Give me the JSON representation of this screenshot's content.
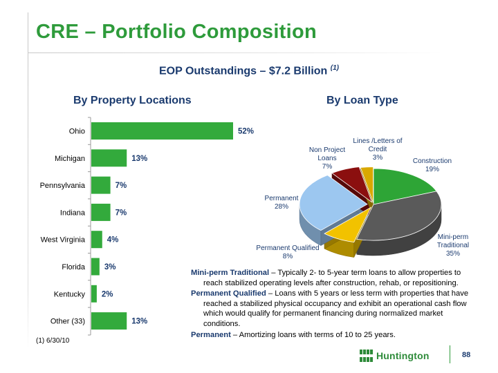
{
  "slide": {
    "title": "CRE – Portfolio Composition",
    "subtitle": "EOP Outstandings – $7.2 Billion",
    "subtitle_note": "(1)",
    "footnote": "(1)  6/30/10",
    "page_number": "88",
    "logo_text": "Huntington",
    "colors": {
      "title": "#2e9b3b",
      "navy": "#1a3a6e",
      "bar": "#33aa3c"
    }
  },
  "sections": {
    "locations_title": "By Property Locations",
    "loan_type_title": "By Loan Type"
  },
  "chart_data": [
    {
      "type": "bar",
      "orientation": "horizontal",
      "title": "By Property Locations",
      "categories": [
        "Ohio",
        "Michigan",
        "Pennsylvania",
        "Indiana",
        "West Virginia",
        "Florida",
        "Kentucky",
        "Other (33)"
      ],
      "values": [
        52,
        13,
        7,
        7,
        4,
        3,
        2,
        13
      ],
      "labels": [
        "52%",
        "13%",
        "7%",
        "7%",
        "4%",
        "3%",
        "2%",
        "13%"
      ],
      "unit": "%",
      "xlim": [
        0,
        60
      ],
      "color": "#33aa3c",
      "grid": false
    },
    {
      "type": "pie",
      "style": "3d-exploded",
      "title": "By Loan Type",
      "slices": [
        {
          "name": "Construction",
          "value": 19,
          "label": "19%",
          "color": "#2ea536"
        },
        {
          "name": "Mini-perm Traditional",
          "value": 35,
          "label": "35%",
          "color": "#5a5a5a"
        },
        {
          "name": "Permanent Qualified",
          "value": 8,
          "label": "8%",
          "color": "#f2c200"
        },
        {
          "name": "Permanent",
          "value": 28,
          "label": "28%",
          "color": "#9cc7f0"
        },
        {
          "name": "Non Project Loans",
          "value": 7,
          "label": "7%",
          "color": "#8b0f0f"
        },
        {
          "name": "Lines /Letters of Credit",
          "value": 3,
          "label": "3%",
          "color": "#d9a800"
        }
      ],
      "slice_name_lines": {
        "Construction": [
          "Construction"
        ],
        "Mini-perm Traditional": [
          "Mini-perm",
          "Traditional"
        ],
        "Permanent Qualified": [
          "Permanent Qualified"
        ],
        "Permanent": [
          "Permanent"
        ],
        "Non Project Loans": [
          "Non Project",
          "Loans"
        ],
        "Lines /Letters of Credit": [
          "Lines /Letters of",
          "Credit"
        ]
      }
    }
  ],
  "notes": [
    {
      "term": "Mini-perm Traditional",
      "text": " – Typically 2- to 5-year term loans to allow properties to reach stabilized operating levels after construction, rehab, or repositioning."
    },
    {
      "term": "Permanent Qualified",
      "text": " – Loans with 5 years or less term with properties that have reached a stabilized physical occupancy and exhibit an operational cash flow which would qualify for permanent financing during normalized market conditions."
    },
    {
      "term": "Permanent",
      "text": " – Amortizing loans with terms of 10 to  25 years."
    }
  ]
}
